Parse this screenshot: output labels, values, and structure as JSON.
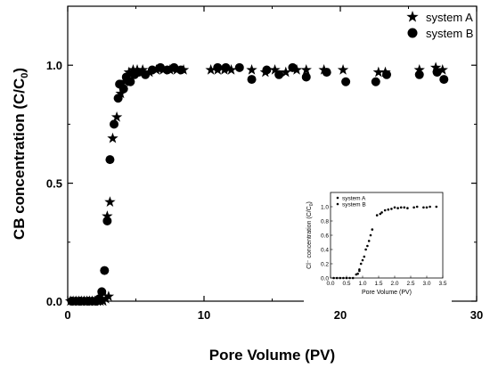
{
  "chart_data": {
    "type": "scatter",
    "xlabel": "Pore Volume (PV)",
    "ylabel": "CB concentration (C/C",
    "ylabel_sub": "0",
    "ylabel_close": ")",
    "xlim": [
      0,
      30
    ],
    "ylim": [
      0,
      1.25
    ],
    "x_ticks": [
      0,
      10,
      20,
      30
    ],
    "y_ticks": [
      0.0,
      0.5,
      1.0
    ],
    "x_tick_labels": [
      "0",
      "10",
      "20",
      "30"
    ],
    "y_tick_labels": [
      "0.0",
      "0.5",
      "1.0"
    ],
    "legend_position": "top-right",
    "series": [
      {
        "name": "system A",
        "marker": "star",
        "points": [
          [
            0.2,
            0.0
          ],
          [
            0.4,
            0.0
          ],
          [
            0.6,
            0.0
          ],
          [
            0.8,
            0.0
          ],
          [
            1.0,
            0.0
          ],
          [
            1.2,
            0.0
          ],
          [
            1.4,
            0.0
          ],
          [
            1.6,
            0.0
          ],
          [
            1.8,
            0.0
          ],
          [
            2.0,
            0.0
          ],
          [
            2.2,
            0.0
          ],
          [
            2.4,
            0.0
          ],
          [
            2.6,
            0.0
          ],
          [
            2.8,
            0.01
          ],
          [
            3.0,
            0.02
          ],
          [
            2.9,
            0.36
          ],
          [
            3.1,
            0.42
          ],
          [
            3.3,
            0.69
          ],
          [
            3.6,
            0.78
          ],
          [
            3.9,
            0.88
          ],
          [
            4.2,
            0.93
          ],
          [
            4.5,
            0.97
          ],
          [
            4.8,
            0.98
          ],
          [
            5.1,
            0.98
          ],
          [
            5.5,
            0.98
          ],
          [
            6.0,
            0.97
          ],
          [
            6.5,
            0.98
          ],
          [
            7.0,
            0.98
          ],
          [
            7.5,
            0.98
          ],
          [
            8.0,
            0.98
          ],
          [
            8.5,
            0.98
          ],
          [
            10.5,
            0.98
          ],
          [
            11.0,
            0.98
          ],
          [
            11.5,
            0.98
          ],
          [
            12.0,
            0.98
          ],
          [
            13.5,
            0.98
          ],
          [
            14.5,
            0.97
          ],
          [
            15.2,
            0.98
          ],
          [
            16.0,
            0.97
          ],
          [
            16.8,
            0.98
          ],
          [
            17.5,
            0.98
          ],
          [
            18.8,
            0.98
          ],
          [
            20.2,
            0.98
          ],
          [
            22.8,
            0.97
          ],
          [
            23.3,
            0.97
          ],
          [
            25.8,
            0.98
          ],
          [
            27.0,
            0.99
          ],
          [
            27.5,
            0.98
          ]
        ]
      },
      {
        "name": "system B",
        "marker": "circle",
        "points": [
          [
            0.3,
            0.0
          ],
          [
            0.6,
            0.0
          ],
          [
            0.9,
            0.0
          ],
          [
            1.2,
            0.0
          ],
          [
            1.5,
            0.0
          ],
          [
            1.8,
            0.0
          ],
          [
            2.1,
            0.0
          ],
          [
            2.3,
            0.01
          ],
          [
            2.5,
            0.04
          ],
          [
            2.7,
            0.13
          ],
          [
            2.9,
            0.34
          ],
          [
            3.1,
            0.6
          ],
          [
            3.4,
            0.75
          ],
          [
            3.7,
            0.86
          ],
          [
            3.8,
            0.92
          ],
          [
            4.1,
            0.9
          ],
          [
            4.3,
            0.95
          ],
          [
            4.6,
            0.93
          ],
          [
            4.9,
            0.96
          ],
          [
            5.2,
            0.97
          ],
          [
            5.7,
            0.96
          ],
          [
            6.2,
            0.98
          ],
          [
            6.8,
            0.99
          ],
          [
            7.3,
            0.98
          ],
          [
            7.8,
            0.99
          ],
          [
            8.3,
            0.98
          ],
          [
            11.0,
            0.99
          ],
          [
            11.6,
            0.99
          ],
          [
            12.6,
            0.99
          ],
          [
            13.5,
            0.94
          ],
          [
            14.6,
            0.98
          ],
          [
            15.5,
            0.96
          ],
          [
            16.5,
            0.99
          ],
          [
            17.5,
            0.95
          ],
          [
            19.0,
            0.97
          ],
          [
            20.4,
            0.93
          ],
          [
            22.6,
            0.93
          ],
          [
            23.4,
            0.96
          ],
          [
            25.8,
            0.96
          ],
          [
            27.1,
            0.97
          ],
          [
            27.6,
            0.94
          ]
        ]
      }
    ],
    "inset": {
      "type": "scatter",
      "xlabel": "Pore Volume (PV)",
      "ylabel": "Cl⁻ concentration (C/C",
      "ylabel_sub": "0",
      "ylabel_close": ")",
      "xlim": [
        0,
        3.5
      ],
      "ylim": [
        0,
        1.2
      ],
      "x_ticks": [
        0,
        0.5,
        1.0,
        1.5,
        2.0,
        2.5,
        3.0,
        3.5
      ],
      "y_ticks": [
        0.0,
        0.2,
        0.4,
        0.6,
        0.8,
        1.0
      ],
      "x_tick_labels": [
        "0.0",
        "0.5",
        "1.0",
        "1.5",
        "2.0",
        "2.5",
        "3.0",
        "3.5"
      ],
      "y_tick_labels": [
        "0.0",
        "0.2",
        "0.4",
        "0.6",
        "0.8",
        "1.0"
      ],
      "series": [
        {
          "name": "system A",
          "marker": "small-circle",
          "points": [
            [
              0.1,
              0.0
            ],
            [
              0.2,
              0.0
            ],
            [
              0.3,
              0.0
            ],
            [
              0.4,
              0.0
            ],
            [
              0.5,
              0.0
            ],
            [
              0.6,
              0.0
            ],
            [
              0.7,
              0.0
            ],
            [
              0.8,
              0.05
            ],
            [
              0.9,
              0.1
            ],
            [
              0.95,
              0.2
            ],
            [
              1.05,
              0.3
            ],
            [
              1.15,
              0.45
            ],
            [
              1.25,
              0.6
            ],
            [
              1.45,
              0.88
            ],
            [
              1.6,
              0.92
            ],
            [
              1.7,
              0.95
            ],
            [
              1.9,
              0.97
            ],
            [
              2.1,
              0.98
            ],
            [
              2.3,
              0.99
            ],
            [
              2.6,
              0.99
            ],
            [
              2.9,
              0.99
            ],
            [
              3.1,
              1.0
            ]
          ]
        },
        {
          "name": "system B",
          "marker": "small-circle",
          "points": [
            [
              0.85,
              0.06
            ],
            [
              0.9,
              0.12
            ],
            [
              1.0,
              0.25
            ],
            [
              1.1,
              0.4
            ],
            [
              1.2,
              0.52
            ],
            [
              1.3,
              0.68
            ],
            [
              1.55,
              0.9
            ],
            [
              1.8,
              0.96
            ],
            [
              2.0,
              0.99
            ],
            [
              2.2,
              0.99
            ],
            [
              2.4,
              0.98
            ],
            [
              2.7,
              1.0
            ],
            [
              3.0,
              0.99
            ],
            [
              3.3,
              1.0
            ]
          ]
        }
      ]
    }
  }
}
